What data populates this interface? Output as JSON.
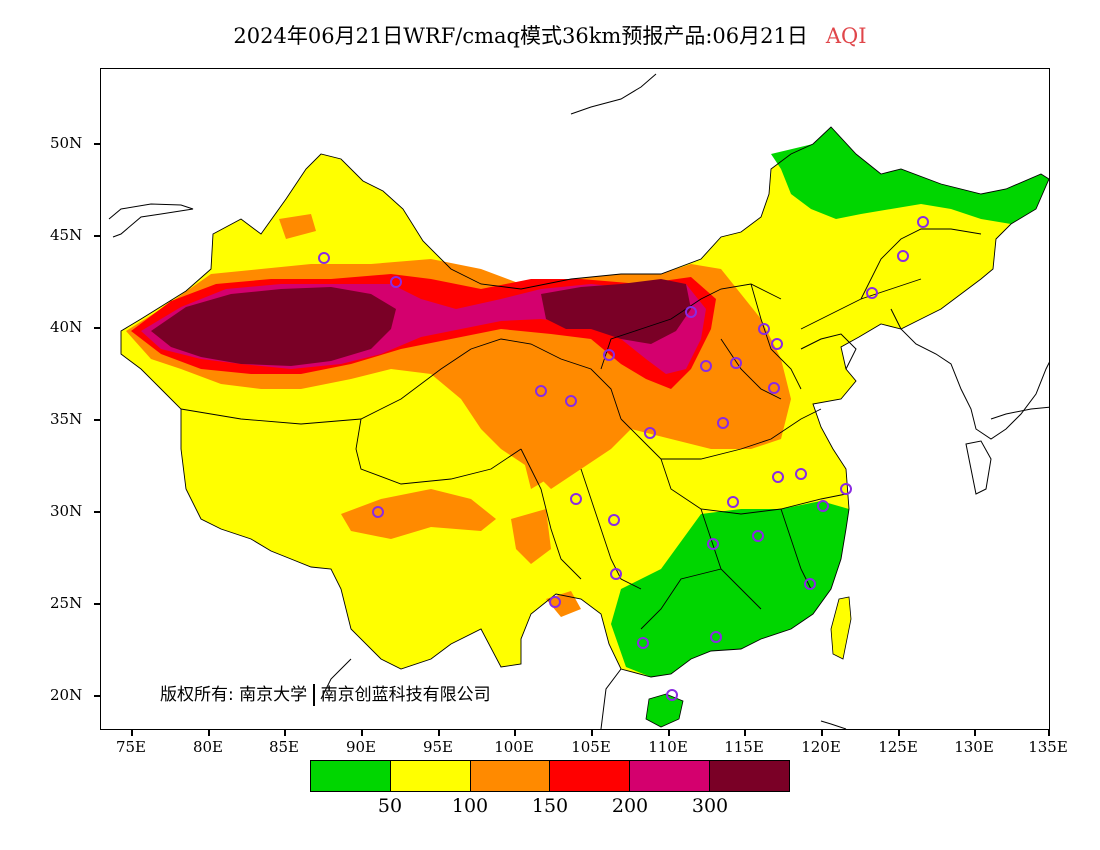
{
  "title": {
    "main": "2024年06月21日WRF/cmaq模式36km预报产品:06月21日",
    "variable": "AQI"
  },
  "axes": {
    "lat_labels": [
      "50N",
      "45N",
      "40N",
      "35N",
      "30N",
      "25N",
      "20N"
    ],
    "lon_labels": [
      "75E",
      "80E",
      "85E",
      "90E",
      "95E",
      "100E",
      "105E",
      "110E",
      "115E",
      "120E",
      "125E",
      "130E",
      "135E"
    ]
  },
  "copyright": {
    "part1": "版权所有: 南京大学",
    "part2": "南京创蓝科技有限公司"
  },
  "legend": {
    "colors": [
      "#00d600",
      "#ffff00",
      "#ff8a00",
      "#ff0000",
      "#d4006e",
      "#7a0026"
    ],
    "labels": [
      "50",
      "100",
      "150",
      "200",
      "300"
    ]
  },
  "colors": {
    "good": "#00d600",
    "moderate": "#ffff00",
    "sensitive": "#ff8a00",
    "unhealthy": "#ff0000",
    "very_unhealthy": "#d4006e",
    "hazardous": "#7a0026",
    "station_marker": "#8a2be2"
  }
}
